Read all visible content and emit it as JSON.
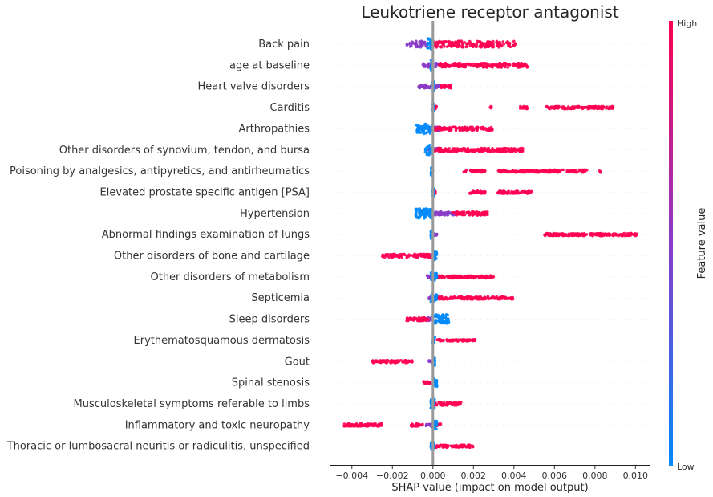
{
  "chart_data": {
    "type": "scatter",
    "subtype": "shap-beeswarm",
    "title": "Leukotriene receptor antagonist",
    "xlabel": "SHAP value (impact on model output)",
    "xlim": [
      -0.0051,
      0.0107
    ],
    "xticks": [
      -0.004,
      -0.002,
      0.0,
      0.002,
      0.004,
      0.006,
      0.008,
      0.01
    ],
    "xtick_labels": [
      "−0.004",
      "−0.002",
      "0.000",
      "0.002",
      "0.004",
      "0.006",
      "0.008",
      "0.010"
    ],
    "zero_line": 0,
    "colorbar": {
      "label": "Feature value",
      "high_label": "High",
      "low_label": "Low",
      "low_color": "#008afb",
      "high_color": "#ff0052"
    },
    "features": [
      {
        "name": "Back pain",
        "high": [
          [
            0.0,
            0.0041
          ]
        ],
        "low": [
          [
            -0.0003,
            0.0
          ]
        ],
        "mid": [
          [
            -0.0013,
            -0.0002
          ]
        ],
        "spread": 7
      },
      {
        "name": "age at baseline",
        "high": [
          [
            0.0003,
            0.0047
          ]
        ],
        "low": [
          [
            -0.0001,
            0.0
          ]
        ],
        "mid": [
          [
            -0.0005,
            0.0003
          ]
        ],
        "spread": 5
      },
      {
        "name": "Heart valve disorders",
        "high": [
          [
            0.0003,
            0.0009
          ]
        ],
        "low": [
          [
            0.0,
            0.0
          ]
        ],
        "mid": [
          [
            -0.0007,
            0.0007
          ]
        ],
        "spread": 4
      },
      {
        "name": "Carditis",
        "high": [
          [
            0.0,
            0.0002
          ],
          [
            0.0028,
            0.0029
          ],
          [
            0.0043,
            0.0047
          ],
          [
            0.0056,
            0.0089
          ]
        ],
        "low": [
          [
            0.0,
            0.0
          ]
        ],
        "mid": [],
        "spread": 3
      },
      {
        "name": "Arthropathies",
        "high": [
          [
            0.0,
            0.003
          ]
        ],
        "low": [
          [
            -0.0008,
            0.0
          ]
        ],
        "mid": [
          [
            -0.0003,
            0.0004
          ]
        ],
        "spread": 4
      },
      {
        "name": "Other disorders of synovium, tendon, and bursa",
        "high": [
          [
            0.0,
            0.0045
          ]
        ],
        "low": [
          [
            -0.0004,
            0.0
          ]
        ],
        "mid": [
          [
            -0.0002,
            0.0003
          ]
        ],
        "spread": 4
      },
      {
        "name": "Poisoning by analgesics, antipyretics, and antirheumatics",
        "high": [
          [
            0.0015,
            0.0026
          ],
          [
            0.0032,
            0.0076
          ],
          [
            0.0082,
            0.0083
          ]
        ],
        "low": [
          [
            -0.0001,
            0.0
          ]
        ],
        "mid": [],
        "spread": 3
      },
      {
        "name": "Elevated prostate specific antigen [PSA]",
        "high": [
          [
            0.0,
            0.0002
          ],
          [
            0.0018,
            0.0026
          ],
          [
            0.0032,
            0.0049
          ]
        ],
        "low": [
          [
            0.0,
            0.0
          ]
        ],
        "mid": [],
        "spread": 3
      },
      {
        "name": "Hypertension",
        "high": [
          [
            0.001,
            0.0027
          ]
        ],
        "low": [
          [
            -0.0009,
            0.0
          ]
        ],
        "mid": [
          [
            0.0,
            0.0011
          ]
        ],
        "spread": 4
      },
      {
        "name": "Abnormal findings examination of lungs",
        "high": [
          [
            0.0055,
            0.0101
          ]
        ],
        "low": [
          [
            -0.0001,
            0.0
          ]
        ],
        "mid": [
          [
            -0.0002,
            0.0002
          ]
        ],
        "spread": 3
      },
      {
        "name": "Other disorders of bone and cartilage",
        "high": [
          [
            -0.0025,
            -0.0001
          ]
        ],
        "low": [
          [
            0.0,
            0.0002
          ]
        ],
        "mid": [
          [
            -0.0002,
            0.0
          ]
        ],
        "spread": 4
      },
      {
        "name": "Other disorders of metabolism",
        "high": [
          [
            0.0002,
            0.003
          ]
        ],
        "low": [
          [
            -0.0001,
            0.0002
          ]
        ],
        "mid": [
          [
            -0.0003,
            0.0002
          ]
        ],
        "spread": 3
      },
      {
        "name": "Septicemia",
        "high": [
          [
            0.0002,
            0.004
          ]
        ],
        "low": [
          [
            -0.0001,
            0.0002
          ]
        ],
        "mid": [
          [
            -0.0002,
            0.0002
          ]
        ],
        "spread": 3
      },
      {
        "name": "Sleep disorders",
        "high": [
          [
            -0.0013,
            -0.0002
          ]
        ],
        "low": [
          [
            0.0,
            0.0008
          ]
        ],
        "mid": [
          [
            -0.0004,
            0.0
          ]
        ],
        "spread": 4
      },
      {
        "name": "Erythematosquamous dermatosis",
        "high": [
          [
            0.0002,
            0.0021
          ]
        ],
        "low": [
          [
            0.0,
            0.0001
          ]
        ],
        "mid": [],
        "spread": 2
      },
      {
        "name": "Gout",
        "high": [
          [
            -0.003,
            -0.001
          ]
        ],
        "low": [
          [
            0.0,
            0.0001
          ]
        ],
        "mid": [
          [
            -0.0002,
            0.0
          ]
        ],
        "spread": 3
      },
      {
        "name": "Spinal stenosis",
        "high": [
          [
            -0.0005,
            -0.0001
          ]
        ],
        "low": [
          [
            0.0,
            0.0002
          ]
        ],
        "mid": [],
        "spread": 3
      },
      {
        "name": "Musculoskeletal symptoms referable to limbs",
        "high": [
          [
            0.0,
            0.0014
          ]
        ],
        "low": [
          [
            -0.0001,
            0.0001
          ]
        ],
        "mid": [],
        "spread": 4
      },
      {
        "name": "Inflammatory and toxic neuropathy",
        "high": [
          [
            -0.0044,
            -0.0024
          ],
          [
            -0.0011,
            -0.0005
          ],
          [
            0.0,
            0.0004
          ]
        ],
        "low": [
          [
            0.0,
            0.0002
          ]
        ],
        "mid": [
          [
            -0.0004,
            0.0
          ]
        ],
        "spread": 3
      },
      {
        "name": "Thoracic or lumbosacral neuritis or radiculitis, unspecified",
        "high": [
          [
            0.0,
            0.002
          ]
        ],
        "low": [
          [
            -0.0001,
            0.0001
          ]
        ],
        "mid": [],
        "spread": 3
      }
    ]
  }
}
